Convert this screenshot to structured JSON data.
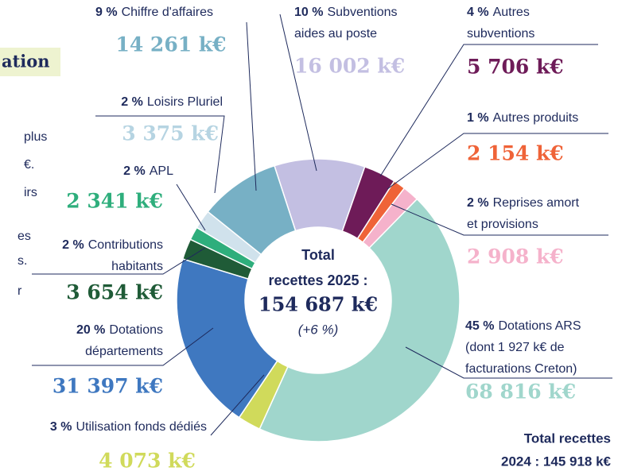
{
  "chart_data": {
    "type": "donut",
    "categories": [
      [
        "Subventions",
        "aides au poste"
      ],
      [
        "Autres",
        "subventions"
      ],
      [
        "Autres produits"
      ],
      [
        "Reprises amort",
        "et provisions"
      ],
      [
        "Dotations ARS",
        "(dont 1 927 k€ de",
        "facturations Creton)"
      ],
      [
        "Utilisation fonds dédiés"
      ],
      [
        "Dotations",
        "départements"
      ],
      [
        "Contributions",
        "habitants"
      ],
      [
        "APL"
      ],
      [
        "Loisirs Pluriel"
      ],
      [
        "Chiffre d'affaires"
      ]
    ],
    "percent_labels": [
      "10 %",
      "4 %",
      "1 %",
      "2 %",
      "45 %",
      "3 %",
      "20 %",
      "2 %",
      "2 %",
      "2 %",
      "9 %"
    ],
    "values": [
      16002,
      5706,
      2154,
      2908,
      68816,
      4073,
      31397,
      3654,
      2341,
      3375,
      14261
    ],
    "value_labels": [
      "16 002 k€",
      "5 706 k€",
      "2 154 k€",
      "2 908 k€",
      "68 816 k€",
      "4 073 k€",
      "31 397 k€",
      "3 654 k€",
      "2 341 k€",
      "3 375 k€",
      "14 261 k€"
    ],
    "colors": [
      "#c3bfe2",
      "#6e1b58",
      "#ef6338",
      "#f5b2cb",
      "#a0d6cc",
      "#d0da5b",
      "#3f78c0",
      "#1f5b37",
      "#2eae7c",
      "#d0e2ec",
      "#77b0c5"
    ],
    "value_colors": [
      "#c3bfe2",
      "#6e1b58",
      "#ef6338",
      "#f5b2cb",
      "#a0d6cc",
      "#d0da5b",
      "#3f78c0",
      "#1f5b37",
      "#2eae7c",
      "#b6d4e2",
      "#77b0c5"
    ],
    "center": [
      "Total",
      "recettes 2025 :",
      "154 687 k€",
      "(+6 %)"
    ],
    "previous_total": [
      "Total recettes",
      "2024 : 145 918 k€"
    ],
    "side_text": {
      "heading": "ation",
      "lines": [
        "plus",
        "€.",
        "irs",
        "es",
        "s.",
        "r"
      ]
    }
  }
}
